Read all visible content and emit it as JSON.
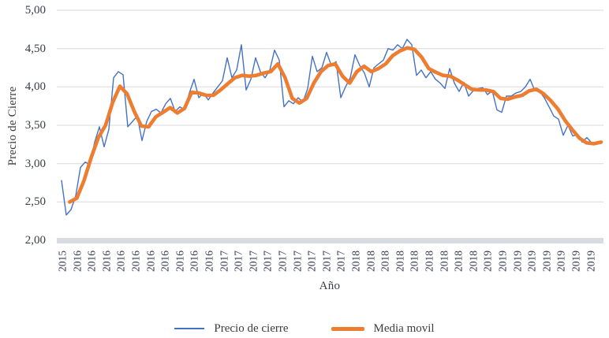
{
  "colors": {
    "background": "#ffffff",
    "gridline": "#d9d9d9",
    "axis_band": "#d7dbe2",
    "text": "#3b3e4a",
    "series_blue": "#4472C4",
    "series_orange": "#ED7D31"
  },
  "legend": {
    "items": [
      {
        "label": "Precio de cierre",
        "color": "#4472C4",
        "thick": false
      },
      {
        "label": "Media movil",
        "color": "#ED7D31",
        "thick": true
      }
    ]
  },
  "chart_data": {
    "type": "line",
    "title": "",
    "ylabel": "Precio de Cierre",
    "xlabel": "Año",
    "grid": true,
    "legend_position": "bottom",
    "y_range": [
      2.0,
      5.0
    ],
    "y_tick_values": [
      2.0,
      2.5,
      3.0,
      3.5,
      4.0,
      4.5,
      5.0
    ],
    "y_ticks": [
      "2,00",
      "2,50",
      "3,00",
      "3,50",
      "4,00",
      "4,50",
      "5,00"
    ],
    "x_tick_labels": [
      "2015",
      "2016",
      "2016",
      "2016",
      "2016",
      "2016",
      "2016",
      "2016",
      "2016",
      "2016",
      "2016",
      "2017",
      "2017",
      "2017",
      "2017",
      "2017",
      "2017",
      "2017",
      "2017",
      "2017",
      "2018",
      "2018",
      "2018",
      "2018",
      "2018",
      "2018",
      "2018",
      "2018",
      "2018",
      "2019",
      "2019",
      "2019",
      "2019",
      "2019",
      "2019",
      "2019",
      "2019"
    ],
    "x_range_note": "weekly closing prices, late 2015 to end of 2019",
    "series": [
      {
        "name": "Precio de cierre",
        "color": "#4472C4",
        "stroke_width": 1.4,
        "t_start": 0.0,
        "values": [
          2.78,
          2.33,
          2.4,
          2.58,
          2.95,
          3.02,
          2.99,
          3.28,
          3.48,
          3.22,
          3.45,
          4.12,
          4.2,
          4.16,
          3.48,
          3.55,
          3.62,
          3.3,
          3.55,
          3.68,
          3.71,
          3.66,
          3.78,
          3.85,
          3.68,
          3.74,
          3.7,
          3.92,
          4.1,
          3.86,
          3.92,
          3.83,
          3.92,
          4.0,
          4.08,
          4.38,
          4.12,
          4.22,
          4.55,
          3.96,
          4.1,
          4.38,
          4.2,
          4.12,
          4.22,
          4.48,
          4.35,
          3.74,
          3.82,
          3.78,
          3.86,
          3.8,
          3.98,
          4.4,
          4.2,
          4.25,
          4.45,
          4.28,
          4.33,
          3.86,
          4.0,
          4.12,
          4.42,
          4.28,
          4.18,
          4.0,
          4.25,
          4.3,
          4.35,
          4.5,
          4.48,
          4.55,
          4.5,
          4.62,
          4.55,
          4.15,
          4.22,
          4.12,
          4.2,
          4.1,
          4.05,
          3.98,
          4.24,
          4.05,
          3.94,
          4.06,
          3.88,
          3.95,
          3.98,
          3.99,
          3.9,
          3.95,
          3.7,
          3.67,
          3.88,
          3.88,
          3.92,
          3.94,
          4.0,
          4.1,
          3.95,
          3.94,
          3.86,
          3.74,
          3.62,
          3.58,
          3.37,
          3.5,
          3.36,
          3.38,
          3.28,
          3.34,
          3.27,
          3.28,
          3.28
        ]
      },
      {
        "name": "Media movil",
        "color": "#ED7D31",
        "stroke_width": 4.6,
        "t_start": 0.015,
        "values": [
          2.5,
          2.55,
          2.78,
          3.08,
          3.34,
          3.5,
          3.8,
          4.01,
          3.91,
          3.68,
          3.49,
          3.48,
          3.61,
          3.67,
          3.73,
          3.66,
          3.72,
          3.93,
          3.92,
          3.89,
          3.89,
          3.96,
          4.04,
          4.12,
          4.15,
          4.14,
          4.15,
          4.18,
          4.2,
          4.3,
          4.12,
          3.85,
          3.79,
          3.85,
          4.05,
          4.2,
          4.28,
          4.3,
          4.14,
          4.05,
          4.2,
          4.27,
          4.2,
          4.24,
          4.3,
          4.41,
          4.47,
          4.51,
          4.49,
          4.39,
          4.24,
          4.19,
          4.15,
          4.14,
          4.09,
          4.03,
          3.97,
          3.96,
          3.96,
          3.94,
          3.85,
          3.84,
          3.87,
          3.89,
          3.95,
          3.97,
          3.91,
          3.82,
          3.71,
          3.56,
          3.44,
          3.33,
          3.27,
          3.26,
          3.28
        ]
      }
    ]
  }
}
